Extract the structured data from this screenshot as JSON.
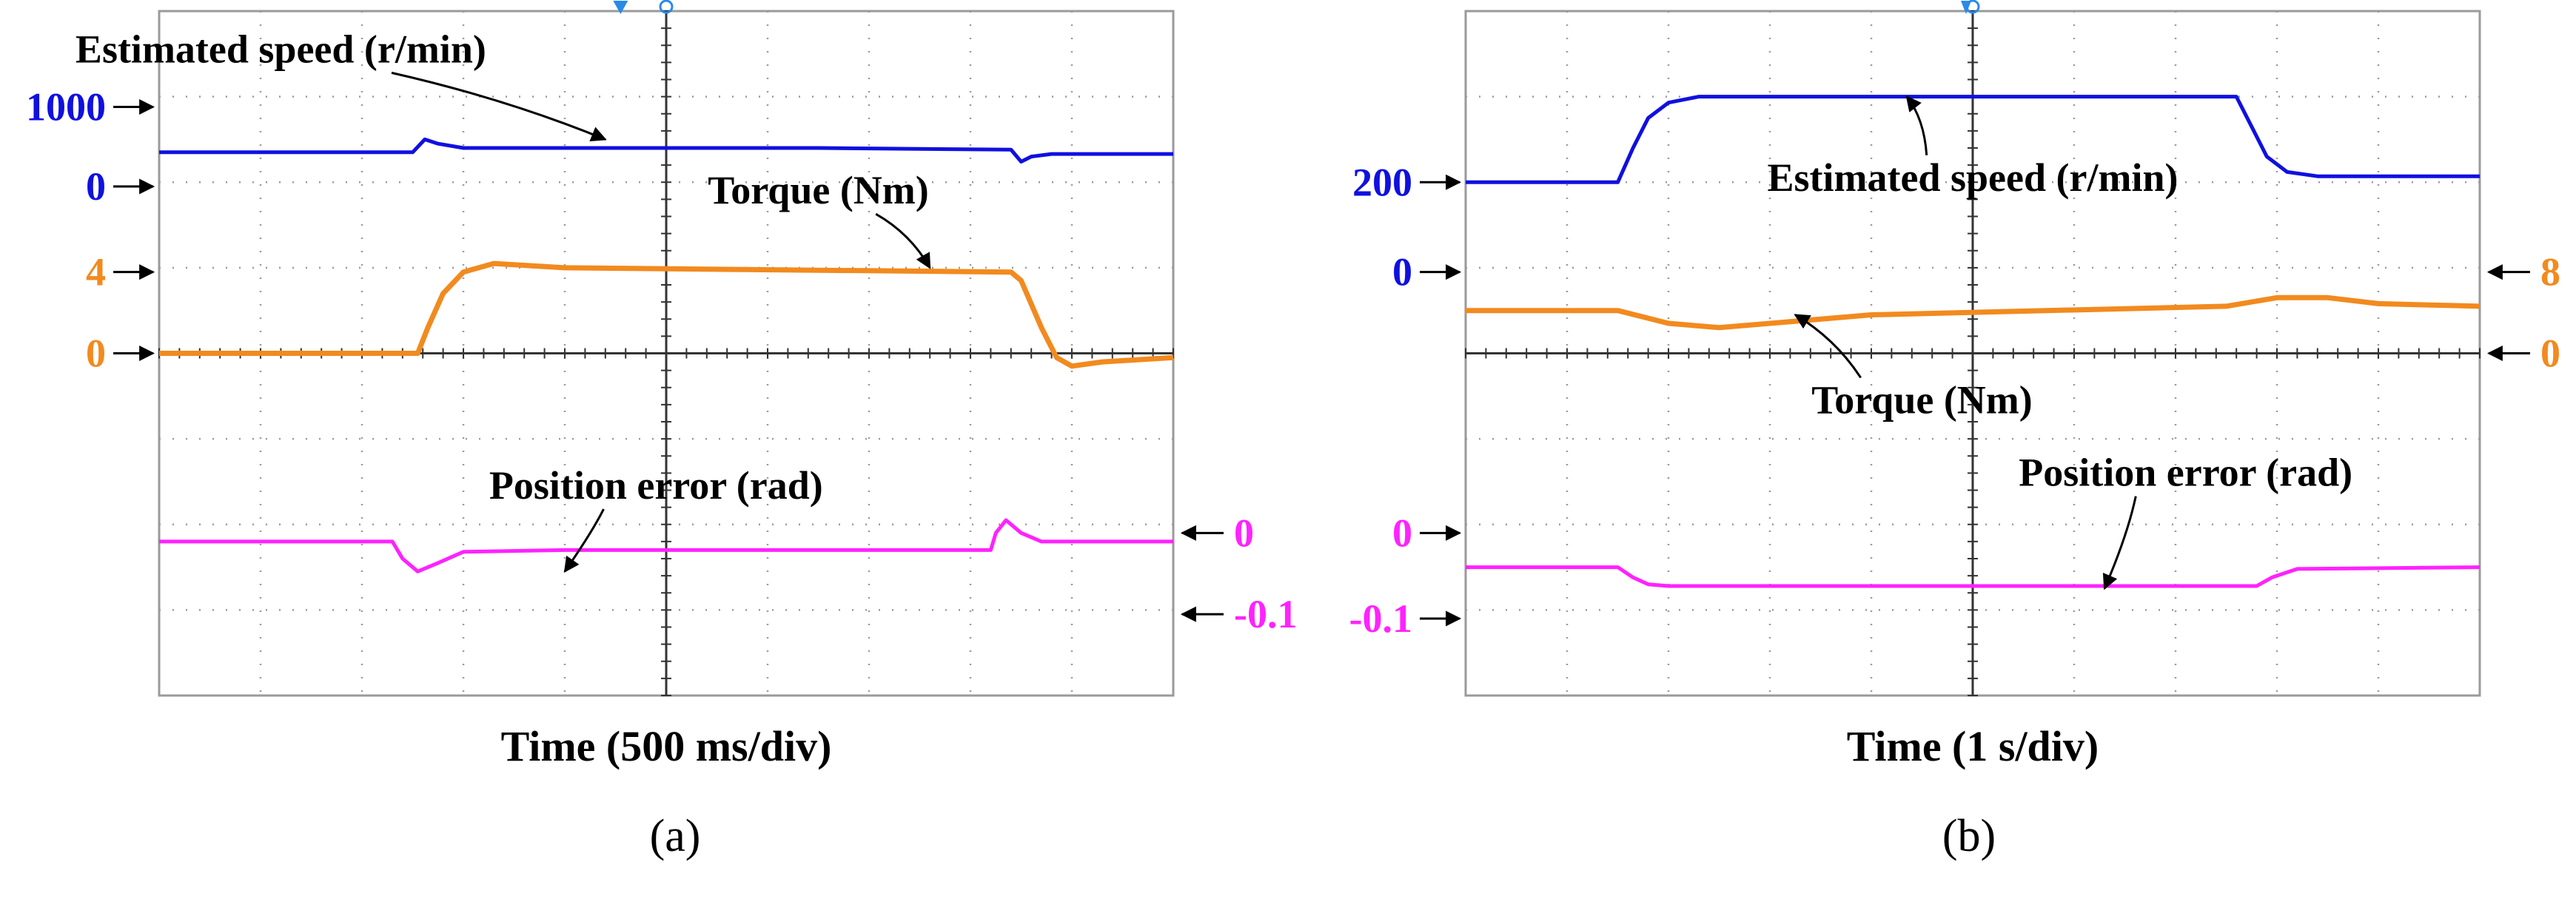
{
  "chart_data": [
    {
      "panel": "(a)",
      "type": "line",
      "xlabel": "Time (500 ms/div)",
      "divisions": {
        "x": 10,
        "y": 8
      },
      "grid": true,
      "colors": {
        "speed": "#1010e0",
        "torque": "#f28a1e",
        "error": "#ff22ff"
      },
      "markers": [
        {
          "series": "speed",
          "label": "1000",
          "side": "left",
          "level_div": 1.12
        },
        {
          "series": "speed",
          "label": "0",
          "side": "left",
          "level_div": 2.05
        },
        {
          "series": "torque",
          "label": "4",
          "side": "left",
          "level_div": 3.05
        },
        {
          "series": "torque",
          "label": "0",
          "side": "left",
          "level_div": 4.0
        },
        {
          "series": "error",
          "label": "0",
          "side": "right",
          "level_div": 6.1
        },
        {
          "series": "error",
          "label": "-0.1",
          "side": "right",
          "level_div": 7.05
        }
      ],
      "series": [
        {
          "key": "speed",
          "name": "Estimated speed (r/min)",
          "label_div": [
            1.2,
            0.6
          ],
          "arrow_to_div": [
            4.4,
            1.5
          ],
          "points": [
            [
              0,
              1.65
            ],
            [
              2.5,
              1.65
            ],
            [
              2.62,
              1.5
            ],
            [
              2.75,
              1.55
            ],
            [
              3.0,
              1.6
            ],
            [
              6.5,
              1.6
            ],
            [
              8.4,
              1.62
            ],
            [
              8.5,
              1.76
            ],
            [
              8.6,
              1.7
            ],
            [
              8.8,
              1.67
            ],
            [
              10,
              1.67
            ]
          ]
        },
        {
          "key": "torque",
          "name": "Torque (Nm)",
          "label_div": [
            6.5,
            2.25
          ],
          "arrow_to_div": [
            7.6,
            3.0
          ],
          "points": [
            [
              0,
              4.0
            ],
            [
              2.55,
              4.0
            ],
            [
              2.65,
              3.7
            ],
            [
              2.8,
              3.3
            ],
            [
              3.0,
              3.05
            ],
            [
              3.3,
              2.95
            ],
            [
              4.0,
              3.0
            ],
            [
              8.4,
              3.05
            ],
            [
              8.5,
              3.15
            ],
            [
              8.7,
              3.7
            ],
            [
              8.85,
              4.05
            ],
            [
              9.0,
              4.15
            ],
            [
              9.3,
              4.1
            ],
            [
              10,
              4.05
            ]
          ]
        },
        {
          "key": "error",
          "name": "Position error (rad)",
          "label_div": [
            4.9,
            5.7
          ],
          "arrow_to_div": [
            4.0,
            6.55
          ],
          "points": [
            [
              0,
              6.2
            ],
            [
              2.3,
              6.2
            ],
            [
              2.4,
              6.4
            ],
            [
              2.55,
              6.55
            ],
            [
              2.75,
              6.45
            ],
            [
              3.0,
              6.32
            ],
            [
              4.0,
              6.3
            ],
            [
              8.2,
              6.3
            ],
            [
              8.25,
              6.1
            ],
            [
              8.35,
              5.95
            ],
            [
              8.5,
              6.1
            ],
            [
              8.7,
              6.2
            ],
            [
              10,
              6.2
            ]
          ]
        }
      ]
    },
    {
      "panel": "(b)",
      "type": "line",
      "xlabel": "Time (1 s/div)",
      "divisions": {
        "x": 10,
        "y": 8
      },
      "grid": true,
      "colors": {
        "speed": "#1010e0",
        "torque": "#f28a1e",
        "error": "#ff22ff"
      },
      "markers": [
        {
          "series": "speed",
          "label": "200",
          "side": "left",
          "level_div": 2.0
        },
        {
          "series": "speed",
          "label": "0",
          "side": "left",
          "level_div": 3.05
        },
        {
          "series": "torque",
          "label": "8",
          "side": "right",
          "level_div": 3.05
        },
        {
          "series": "torque",
          "label": "0",
          "side": "right",
          "level_div": 4.0
        },
        {
          "series": "error",
          "label": "0",
          "side": "left",
          "level_div": 6.1
        },
        {
          "series": "error",
          "label": "-0.1",
          "side": "left",
          "level_div": 7.1
        }
      ],
      "series": [
        {
          "key": "speed",
          "name": "Estimated speed (r/min)",
          "label_div": [
            5.0,
            2.1
          ],
          "arrow_to_div": [
            4.35,
            1.0
          ],
          "points": [
            [
              0,
              2.0
            ],
            [
              1.5,
              2.0
            ],
            [
              1.65,
              1.6
            ],
            [
              1.8,
              1.25
            ],
            [
              2.0,
              1.07
            ],
            [
              2.3,
              1.0
            ],
            [
              7.6,
              1.0
            ],
            [
              7.75,
              1.35
            ],
            [
              7.9,
              1.7
            ],
            [
              8.1,
              1.88
            ],
            [
              8.4,
              1.93
            ],
            [
              10,
              1.93
            ]
          ]
        },
        {
          "key": "torque",
          "name": "Torque (Nm)",
          "label_div": [
            4.5,
            4.7
          ],
          "arrow_to_div": [
            3.25,
            3.55
          ],
          "points": [
            [
              0,
              3.5
            ],
            [
              1.5,
              3.5
            ],
            [
              2.0,
              3.65
            ],
            [
              2.5,
              3.7
            ],
            [
              4.0,
              3.55
            ],
            [
              7.5,
              3.45
            ],
            [
              8.0,
              3.35
            ],
            [
              8.5,
              3.35
            ],
            [
              9.0,
              3.42
            ],
            [
              10,
              3.45
            ]
          ]
        },
        {
          "key": "error",
          "name": "Position error (rad)",
          "label_div": [
            7.1,
            5.55
          ],
          "arrow_to_div": [
            6.3,
            6.75
          ],
          "points": [
            [
              0,
              6.5
            ],
            [
              1.5,
              6.5
            ],
            [
              1.65,
              6.62
            ],
            [
              1.8,
              6.7
            ],
            [
              2.0,
              6.72
            ],
            [
              7.8,
              6.72
            ],
            [
              7.95,
              6.62
            ],
            [
              8.2,
              6.52
            ],
            [
              10,
              6.5
            ]
          ]
        }
      ]
    }
  ],
  "captions": [
    "(a)",
    "(b)"
  ]
}
